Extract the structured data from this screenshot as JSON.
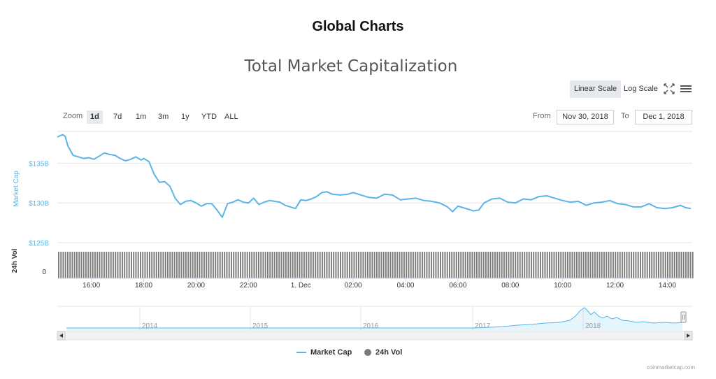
{
  "page": {
    "title": "Global Charts"
  },
  "chart_title": "Total Market Capitalization",
  "toolbar": {
    "linear_label": "Linear Scale",
    "log_label": "Log Scale",
    "fullscreen_icon": "fullscreen-icon",
    "menu_icon": "menu-icon"
  },
  "zoom": {
    "label": "Zoom",
    "buttons": [
      "1d",
      "7d",
      "1m",
      "3m",
      "1y",
      "YTD",
      "ALL"
    ],
    "selected": "1d"
  },
  "range": {
    "from_label": "From",
    "from_value": "Nov 30, 2018",
    "to_label": "To",
    "to_value": "Dec 1, 2018"
  },
  "legend": {
    "market_cap": "Market Cap",
    "volume": "24h Vol"
  },
  "credits": "coinmarketcap.com",
  "colors": {
    "market_cap": "#5ab4e5",
    "volume": "#7b7b7b",
    "navigator": "#5ab4e5"
  },
  "chart_data": {
    "type": "line",
    "title": "Total Market Capitalization",
    "ylabel": "Market Cap",
    "ylabel_volume": "24h Vol",
    "y_ticks": [
      "$135B",
      "$130B",
      "$125B"
    ],
    "y_tick_values": [
      135,
      130,
      125
    ],
    "ylim": [
      125,
      139
    ],
    "volume_tick": "0",
    "x_ticks": [
      "16:00",
      "18:00",
      "20:00",
      "22:00",
      "1. Dec",
      "02:00",
      "04:00",
      "06:00",
      "08:00",
      "10:00",
      "12:00",
      "14:00"
    ],
    "x_tick_hours": [
      16,
      18,
      20,
      22,
      24,
      26,
      28,
      30,
      32,
      34,
      36,
      38
    ],
    "xlim_hours": [
      14.7,
      38.95
    ],
    "series": [
      {
        "name": "Market Cap",
        "unit": "billion USD",
        "x_hours": [
          14.7,
          14.9,
          15.0,
          15.1,
          15.3,
          15.5,
          15.7,
          15.9,
          16.1,
          16.3,
          16.5,
          16.7,
          16.9,
          17.1,
          17.3,
          17.5,
          17.7,
          17.9,
          18.0,
          18.2,
          18.4,
          18.6,
          18.8,
          19.0,
          19.2,
          19.4,
          19.6,
          19.8,
          20.0,
          20.2,
          20.4,
          20.6,
          20.8,
          21.0,
          21.2,
          21.4,
          21.6,
          21.8,
          22.0,
          22.2,
          22.4,
          22.6,
          22.8,
          23.0,
          23.2,
          23.4,
          23.6,
          23.8,
          24.0,
          24.2,
          24.4,
          24.6,
          24.8,
          25.0,
          25.2,
          25.5,
          25.8,
          26.0,
          26.3,
          26.6,
          26.9,
          27.2,
          27.5,
          27.8,
          28.1,
          28.4,
          28.7,
          29.0,
          29.3,
          29.6,
          29.8,
          30.0,
          30.2,
          30.4,
          30.6,
          30.8,
          31.0,
          31.3,
          31.6,
          31.9,
          32.2,
          32.5,
          32.8,
          33.1,
          33.4,
          33.7,
          34.0,
          34.3,
          34.6,
          34.9,
          35.2,
          35.5,
          35.8,
          36.1,
          36.4,
          36.7,
          37.0,
          37.3,
          37.6,
          37.9,
          38.2,
          38.5,
          38.7,
          38.9
        ],
        "values": [
          138.3,
          138.6,
          138.4,
          137.2,
          136.0,
          135.8,
          135.6,
          135.7,
          135.5,
          135.9,
          136.3,
          136.1,
          136.0,
          135.6,
          135.3,
          135.5,
          135.8,
          135.4,
          135.6,
          135.2,
          133.6,
          132.6,
          132.7,
          132.1,
          130.6,
          129.8,
          130.2,
          130.3,
          130.0,
          129.6,
          129.9,
          129.9,
          129.1,
          128.2,
          129.9,
          130.1,
          130.4,
          130.1,
          130.0,
          130.6,
          129.8,
          130.1,
          130.3,
          130.2,
          130.1,
          129.7,
          129.5,
          129.3,
          130.4,
          130.3,
          130.5,
          130.8,
          131.3,
          131.4,
          131.1,
          131.0,
          131.1,
          131.3,
          131.0,
          130.7,
          130.6,
          131.1,
          131.0,
          130.4,
          130.5,
          130.6,
          130.3,
          130.2,
          130.0,
          129.5,
          128.9,
          129.6,
          129.4,
          129.2,
          129.0,
          129.1,
          130.0,
          130.5,
          130.6,
          130.1,
          130.0,
          130.5,
          130.4,
          130.8,
          130.9,
          130.6,
          130.3,
          130.1,
          130.2,
          129.7,
          130.0,
          130.1,
          130.3,
          129.9,
          129.8,
          129.5,
          129.5,
          129.9,
          129.4,
          129.3,
          129.4,
          129.7,
          129.4,
          129.3
        ]
      },
      {
        "name": "24h Vol",
        "type": "column",
        "note": "dense constant bars"
      }
    ],
    "navigator": {
      "year_labels": [
        "2014",
        "2015",
        "2016",
        "2017",
        "2018"
      ]
    }
  }
}
